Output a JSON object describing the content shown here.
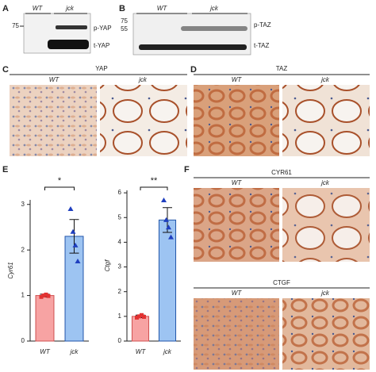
{
  "panels": {
    "A": {
      "label": "A",
      "columns": [
        "WT",
        "jck"
      ],
      "marker": "75",
      "bands": [
        "p-YAP",
        "t-YAP"
      ]
    },
    "B": {
      "label": "B",
      "columns": [
        "WT",
        "jck"
      ],
      "markers": [
        "75",
        "55"
      ],
      "bands": [
        "p-TAZ",
        "t-TAZ"
      ]
    },
    "C": {
      "label": "C",
      "title": "YAP",
      "columns": [
        "WT",
        "jck"
      ]
    },
    "D": {
      "label": "D",
      "title": "TAZ",
      "columns": [
        "WT",
        "jck"
      ]
    },
    "E": {
      "label": "E"
    },
    "F": {
      "label": "F",
      "sections": [
        {
          "title": "CYR61",
          "columns": [
            "WT",
            "jck"
          ]
        },
        {
          "title": "CTGF",
          "columns": [
            "WT",
            "jck"
          ]
        }
      ]
    }
  },
  "chart_data": [
    {
      "type": "bar",
      "categories": [
        "WT",
        "jck"
      ],
      "values": [
        1.0,
        2.3
      ],
      "errors": [
        0.03,
        0.37
      ],
      "points": [
        [
          0.97,
          1.0,
          1.02,
          0.99
        ],
        [
          2.9,
          2.4,
          2.1,
          1.75
        ]
      ],
      "ylabel": "Cyr61",
      "significance": "*",
      "ylim": [
        0,
        3.1
      ],
      "yticks": [
        0,
        1,
        2,
        3
      ],
      "colors": [
        "#f7a3a3",
        "#9dc4f2"
      ],
      "marker_colors": [
        "#e23232",
        "#1f3fbf"
      ]
    },
    {
      "type": "bar",
      "categories": [
        "WT",
        "jck"
      ],
      "values": [
        1.0,
        4.9
      ],
      "errors": [
        0.05,
        0.5
      ],
      "points": [
        [
          0.95,
          1.0,
          1.05,
          0.98
        ],
        [
          5.7,
          4.9,
          4.6,
          4.2
        ]
      ],
      "ylabel": "Ctgf",
      "significance": "**",
      "ylim": [
        0,
        6.1
      ],
      "yticks": [
        0,
        1,
        2,
        3,
        4,
        5,
        6
      ],
      "colors": [
        "#f7a3a3",
        "#9dc4f2"
      ],
      "marker_colors": [
        "#e23232",
        "#1f3fbf"
      ]
    }
  ]
}
